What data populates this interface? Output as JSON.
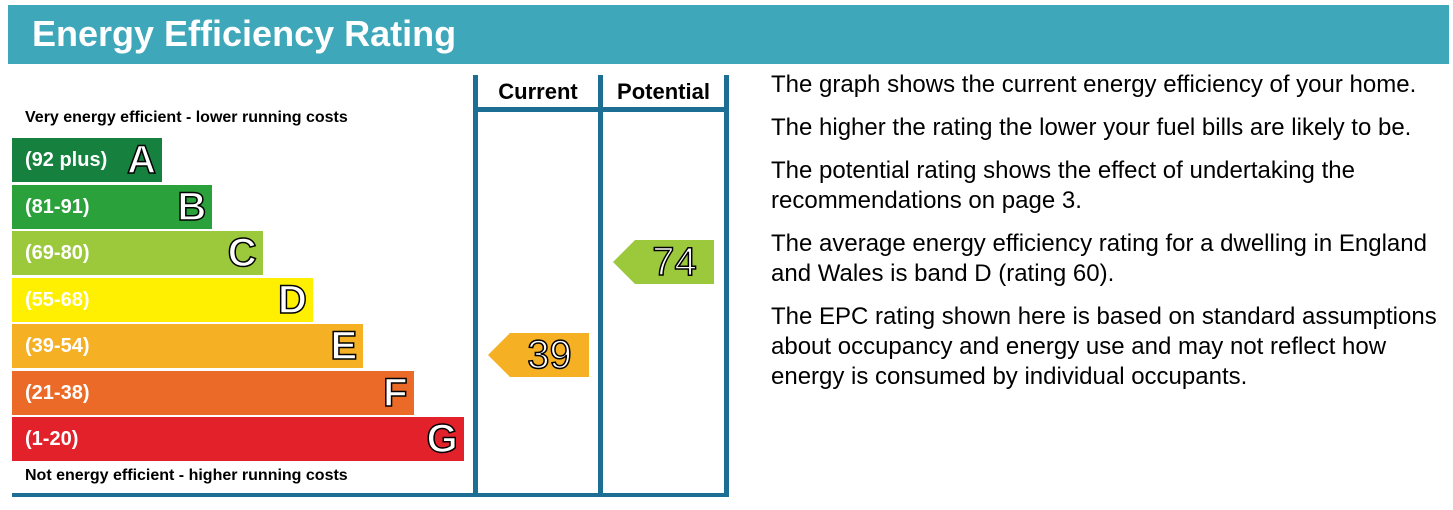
{
  "header": {
    "title": "Energy Efficiency Rating",
    "color": "#3ea7ba"
  },
  "chart_data": {
    "type": "bar",
    "title": "Energy Efficiency Rating",
    "top_caption": "Very energy efficient - lower running costs",
    "bottom_caption": "Not energy efficient - higher running costs",
    "columns": [
      "Current",
      "Potential"
    ],
    "bands": [
      {
        "letter": "A",
        "range": "(92 plus)",
        "color": "#16803f"
      },
      {
        "letter": "B",
        "range": "(81-91)",
        "color": "#2ba13b"
      },
      {
        "letter": "C",
        "range": "(69-80)",
        "color": "#9cc83c"
      },
      {
        "letter": "D",
        "range": "(55-68)",
        "color": "#fff001"
      },
      {
        "letter": "E",
        "range": "(39-54)",
        "color": "#f5b024"
      },
      {
        "letter": "F",
        "range": "(21-38)",
        "color": "#eb6a27"
      },
      {
        "letter": "G",
        "range": "(1-20)",
        "color": "#e3212a"
      }
    ],
    "ratings": [
      {
        "column": "Current",
        "value": 39,
        "band": "E",
        "color": "#f5b024"
      },
      {
        "column": "Potential",
        "value": 74,
        "band": "C",
        "color": "#9cc83c"
      }
    ]
  },
  "description": [
    "The graph shows the current energy efficiency of your home.",
    "The higher the rating the lower your fuel bills are likely to be.",
    "The potential rating shows the effect of undertaking the recommendations on page 3.",
    "The average energy efficiency rating for a dwelling in England and Wales is band D (rating 60).",
    "The EPC rating shown here is based on standard assumptions about occupancy and energy use and may not reflect how energy is consumed by individual occupants."
  ]
}
